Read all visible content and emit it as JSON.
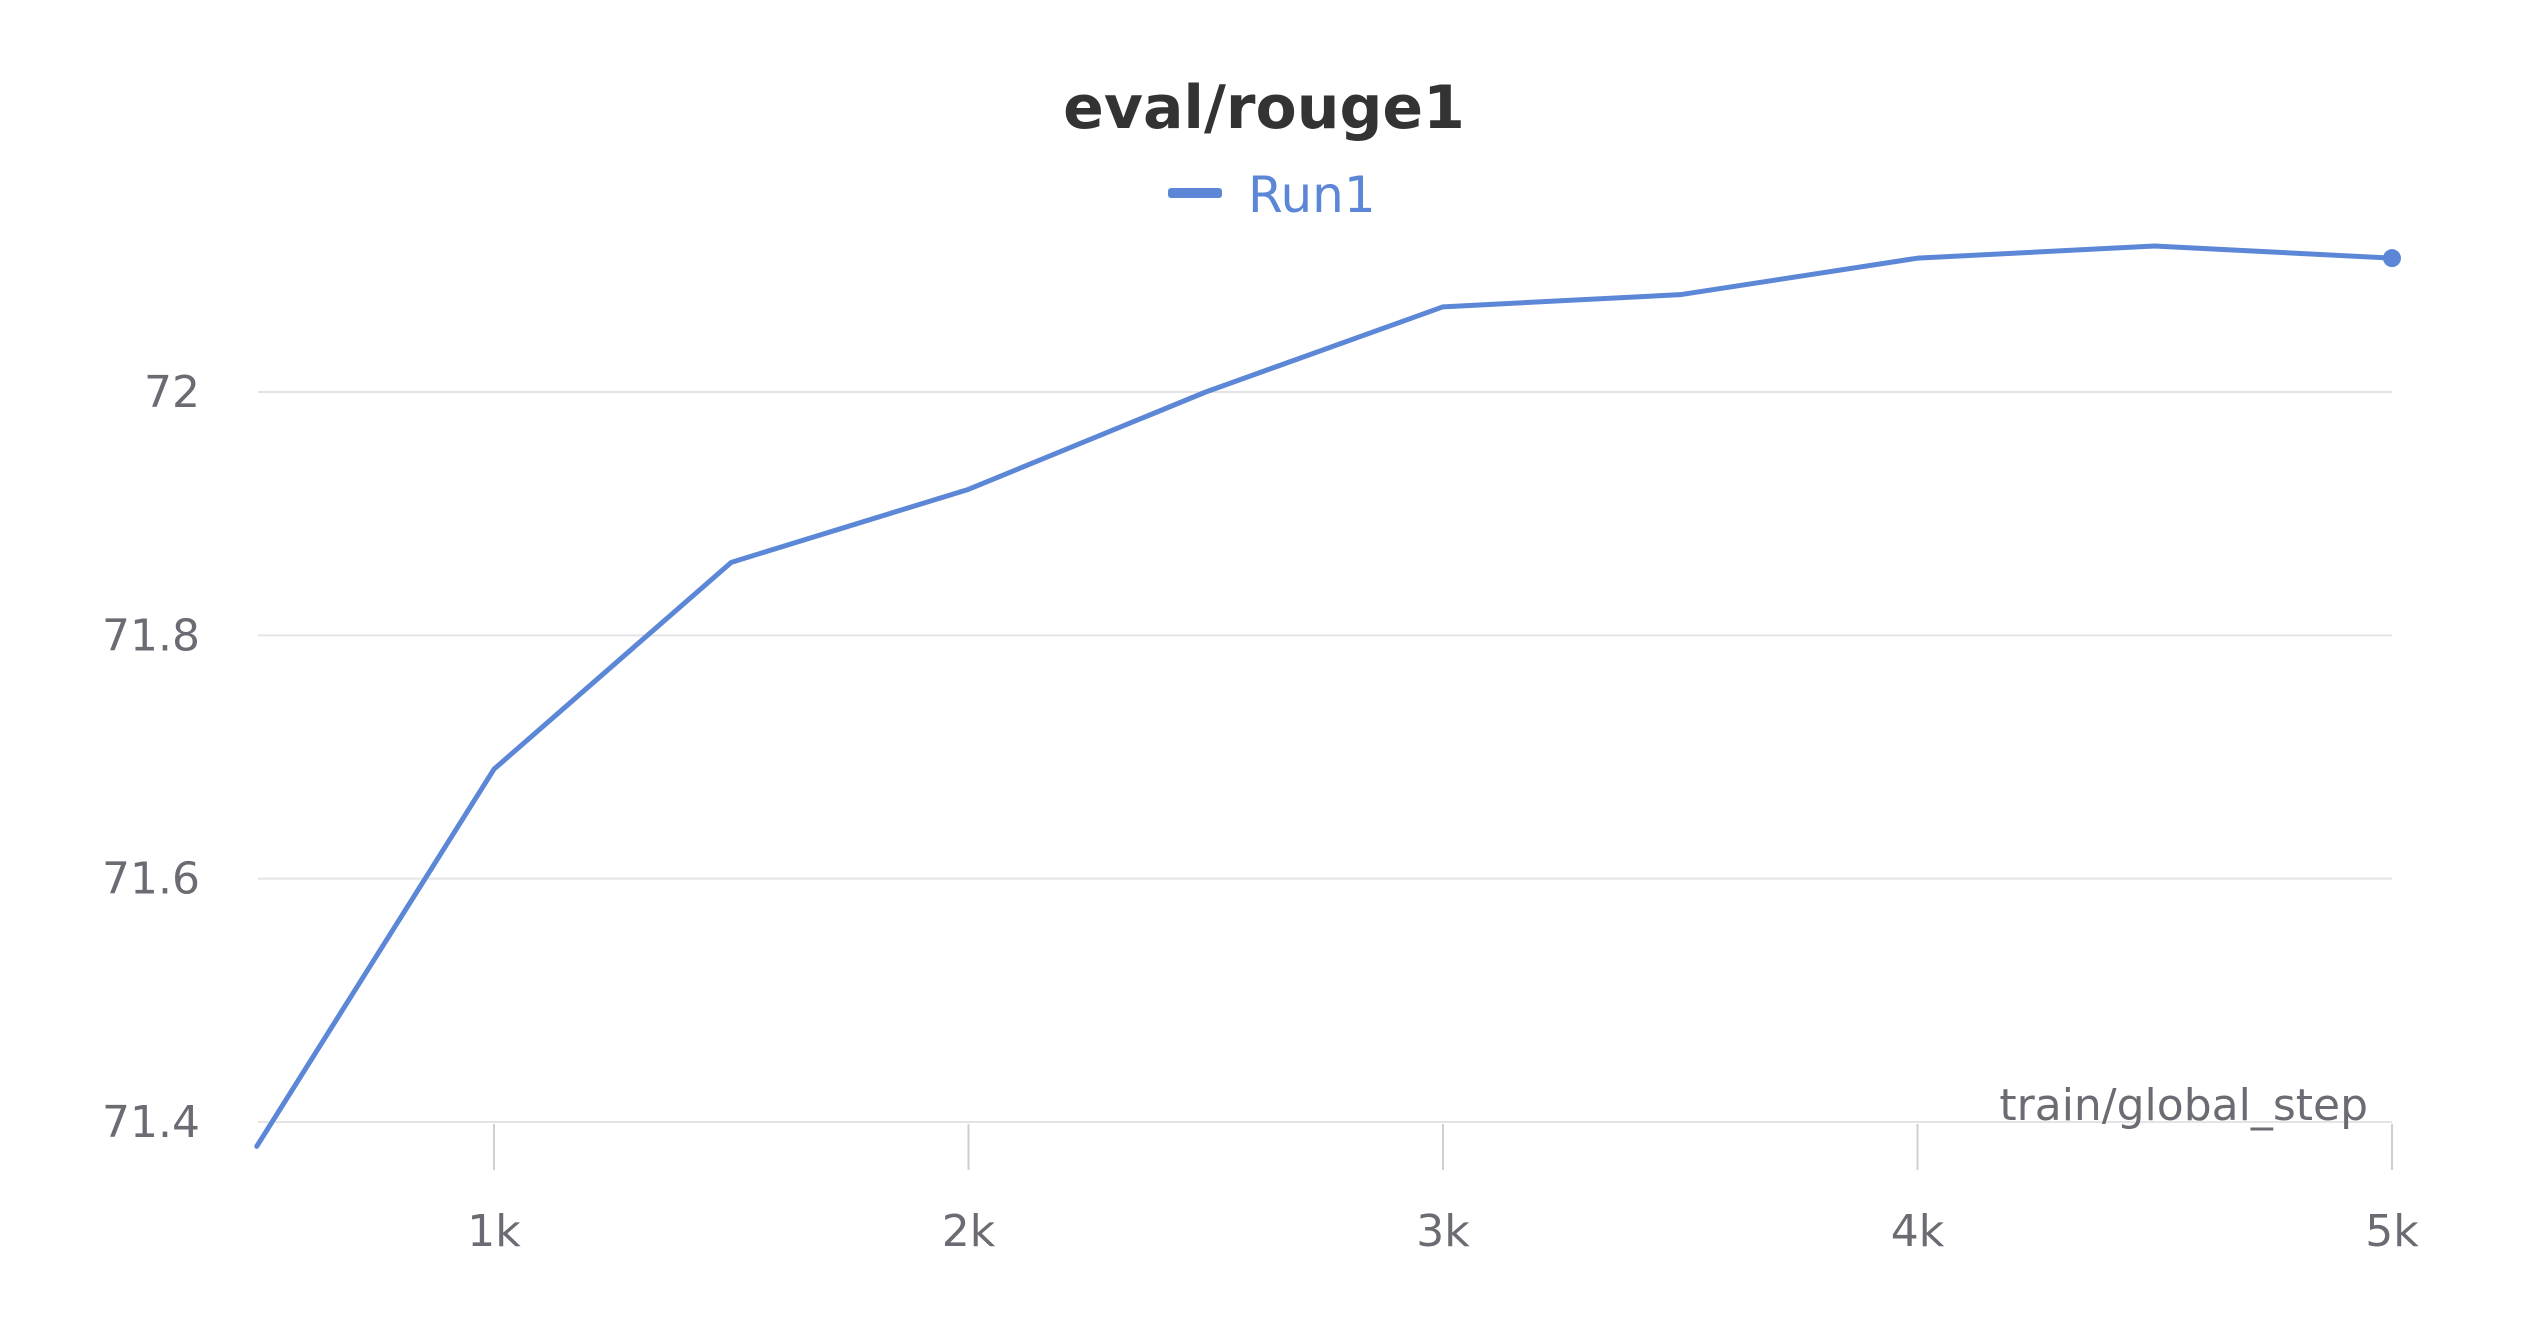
{
  "chart_data": {
    "type": "line",
    "title": "eval/rouge1",
    "xlabel": "train/global_step",
    "ylabel": "",
    "xlim": [
      500,
      5000
    ],
    "ylim": [
      71.38,
      73.3
    ],
    "x_ticks": [
      1000,
      2000,
      3000,
      4000,
      5000
    ],
    "x_tick_labels": [
      "1k",
      "2k",
      "3k",
      "4k",
      "5k"
    ],
    "y_ticks": [
      71.4,
      71.6,
      71.8,
      72
    ],
    "y_tick_labels": [
      "71.4",
      "71.6",
      "71.8",
      "72"
    ],
    "grid": true,
    "legend_position": "top-center",
    "series": [
      {
        "name": "Run1",
        "color": "#5b87d6",
        "x": [
          500,
          1000,
          1500,
          2000,
          2500,
          3000,
          3500,
          4000,
          4500,
          5000
        ],
        "y": [
          71.38,
          71.69,
          71.86,
          71.92,
          72.0,
          72.07,
          72.08,
          72.11,
          72.12,
          72.11
        ]
      }
    ]
  }
}
